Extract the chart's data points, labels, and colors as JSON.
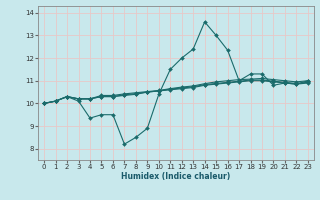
{
  "xlabel": "Humidex (Indice chaleur)",
  "xlim": [
    -0.5,
    23.5
  ],
  "ylim": [
    7.5,
    14.3
  ],
  "yticks": [
    8,
    9,
    10,
    11,
    12,
    13,
    14
  ],
  "xticks": [
    0,
    1,
    2,
    3,
    4,
    5,
    6,
    7,
    8,
    9,
    10,
    11,
    12,
    13,
    14,
    15,
    16,
    17,
    18,
    19,
    20,
    21,
    22,
    23
  ],
  "bg_color": "#c8e8ec",
  "grid_color": "#e8c8c8",
  "line_color": "#1a6b6b",
  "lines": [
    [
      10.0,
      10.1,
      10.3,
      10.1,
      9.35,
      9.5,
      9.5,
      8.2,
      8.5,
      8.9,
      10.4,
      11.5,
      12.0,
      12.4,
      13.6,
      13.0,
      12.35,
      11.0,
      11.3,
      11.3,
      10.8,
      10.9,
      10.85,
      11.0
    ],
    [
      10.0,
      10.1,
      10.3,
      10.2,
      10.2,
      10.3,
      10.3,
      10.35,
      10.4,
      10.5,
      10.55,
      10.6,
      10.65,
      10.7,
      10.8,
      10.85,
      10.9,
      10.95,
      11.0,
      11.0,
      10.95,
      10.9,
      10.85,
      10.9
    ],
    [
      10.0,
      10.1,
      10.3,
      10.2,
      10.2,
      10.3,
      10.3,
      10.38,
      10.43,
      10.5,
      10.55,
      10.63,
      10.68,
      10.73,
      10.83,
      10.88,
      10.93,
      10.98,
      11.03,
      11.03,
      10.98,
      10.93,
      10.88,
      10.93
    ],
    [
      10.0,
      10.1,
      10.3,
      10.2,
      10.2,
      10.35,
      10.35,
      10.42,
      10.47,
      10.52,
      10.57,
      10.65,
      10.72,
      10.77,
      10.87,
      10.95,
      11.0,
      11.05,
      11.07,
      11.1,
      11.05,
      11.0,
      10.95,
      11.0
    ]
  ],
  "marker": "D",
  "marker_size": 2.0,
  "line_width": 0.8
}
